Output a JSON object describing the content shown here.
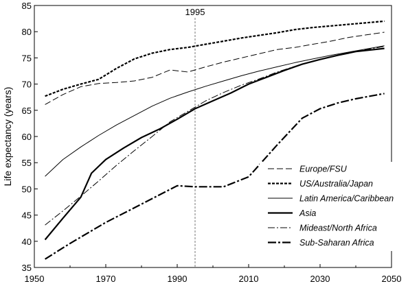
{
  "chart_data": {
    "type": "line",
    "title": "",
    "xlabel": "",
    "ylabel": "Life expectancy (years)",
    "xlim": [
      1950,
      2050
    ],
    "ylim": [
      35,
      85
    ],
    "xticks": [
      "1950",
      "1970",
      "1990",
      "2010",
      "2030",
      "2050"
    ],
    "xtick_values": [
      1950,
      1970,
      1990,
      2010,
      2030,
      2050
    ],
    "yticks": [
      "35",
      "40",
      "45",
      "50",
      "55",
      "60",
      "65",
      "70",
      "75",
      "80",
      "85"
    ],
    "ytick_values": [
      35,
      40,
      45,
      50,
      55,
      60,
      65,
      70,
      75,
      80,
      85
    ],
    "grid": false,
    "legend_position": "bottom-right",
    "annotations": [
      {
        "text": "1995",
        "x": 1995,
        "style": "vertical dashed line"
      }
    ],
    "series": [
      {
        "name": "Europe/FSU",
        "line_style": "long-dash",
        "x": [
          1953,
          1958,
          1963,
          1968,
          1973,
          1978,
          1983,
          1988,
          1993,
          1998,
          2003,
          2008,
          2013,
          2018,
          2023,
          2028,
          2033,
          2038,
          2043,
          2048
        ],
        "y": [
          66.1,
          68.0,
          69.5,
          70.1,
          70.3,
          70.6,
          71.3,
          72.7,
          72.3,
          73.3,
          74.2,
          75.0,
          75.8,
          76.6,
          77.0,
          77.6,
          78.2,
          78.9,
          79.4,
          79.9
        ]
      },
      {
        "name": "US/Australia/Japan",
        "line_style": "short-dash",
        "x": [
          1953,
          1958,
          1963,
          1968,
          1973,
          1978,
          1983,
          1988,
          1993,
          1998,
          2003,
          2008,
          2013,
          2018,
          2023,
          2028,
          2033,
          2038,
          2043,
          2048
        ],
        "y": [
          67.7,
          69.0,
          70.0,
          70.9,
          73.0,
          74.8,
          75.9,
          76.6,
          77.0,
          77.6,
          78.2,
          78.8,
          79.3,
          79.8,
          80.4,
          80.8,
          81.1,
          81.4,
          81.7,
          82.0
        ]
      },
      {
        "name": "Latin America/Caribbean",
        "line_style": "solid-thin",
        "x": [
          1953,
          1958,
          1963,
          1968,
          1973,
          1978,
          1983,
          1988,
          1993,
          1998,
          2003,
          2008,
          2013,
          2018,
          2023,
          2028,
          2033,
          2038,
          2043,
          2048
        ],
        "y": [
          52.4,
          55.6,
          58.0,
          60.2,
          62.2,
          64.0,
          65.8,
          67.3,
          68.5,
          69.6,
          70.6,
          71.6,
          72.5,
          73.3,
          74.1,
          74.8,
          75.5,
          76.1,
          76.7,
          77.3
        ]
      },
      {
        "name": "Asia",
        "line_style": "solid-thick",
        "x": [
          1953,
          1958,
          1963,
          1966,
          1970,
          1975,
          1980,
          1985,
          1990,
          1995,
          2000,
          2005,
          2010,
          2015,
          2020,
          2025,
          2030,
          2035,
          2040,
          2048
        ],
        "y": [
          40.3,
          44.4,
          48.4,
          53.0,
          55.6,
          57.8,
          59.8,
          61.4,
          63.3,
          65.3,
          66.8,
          68.3,
          70.0,
          71.3,
          72.6,
          73.8,
          74.7,
          75.5,
          76.2,
          76.8
        ]
      },
      {
        "name": "Mideast/North Africa",
        "line_style": "dash-dot",
        "x": [
          1953,
          1958,
          1963,
          1968,
          1973,
          1978,
          1983,
          1988,
          1993,
          1998,
          2003,
          2008,
          2013,
          2018,
          2023,
          2028,
          2033,
          2038,
          2043,
          2048
        ],
        "y": [
          43.1,
          45.8,
          48.6,
          51.5,
          54.5,
          57.3,
          60.0,
          62.8,
          64.8,
          66.8,
          68.4,
          69.8,
          71.0,
          72.3,
          73.4,
          74.4,
          75.2,
          75.9,
          76.6,
          77.2
        ]
      },
      {
        "name": "Sub-Saharan Africa",
        "line_style": "thick-long-dash",
        "x": [
          1953,
          1960,
          1970,
          1980,
          1990,
          1995,
          2003,
          2010,
          2018,
          2025,
          2030,
          2035,
          2040,
          2048
        ],
        "y": [
          36.6,
          39.6,
          43.6,
          47.1,
          50.6,
          50.4,
          50.4,
          52.3,
          58.4,
          63.5,
          65.3,
          66.4,
          67.2,
          68.2
        ]
      }
    ]
  }
}
